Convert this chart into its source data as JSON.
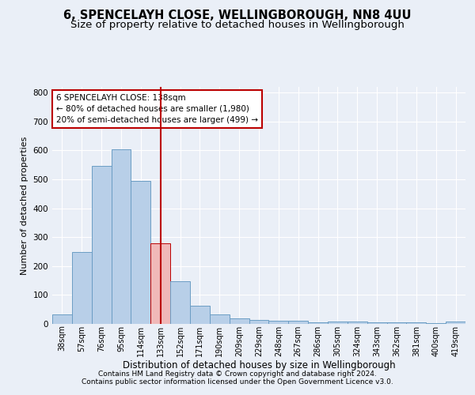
{
  "title": "6, SPENCELAYH CLOSE, WELLINGBOROUGH, NN8 4UU",
  "subtitle": "Size of property relative to detached houses in Wellingborough",
  "xlabel": "Distribution of detached houses by size in Wellingborough",
  "ylabel": "Number of detached properties",
  "footnote1": "Contains HM Land Registry data © Crown copyright and database right 2024.",
  "footnote2": "Contains public sector information licensed under the Open Government Licence v3.0.",
  "categories": [
    "38sqm",
    "57sqm",
    "76sqm",
    "95sqm",
    "114sqm",
    "133sqm",
    "152sqm",
    "171sqm",
    "190sqm",
    "209sqm",
    "229sqm",
    "248sqm",
    "267sqm",
    "286sqm",
    "305sqm",
    "324sqm",
    "343sqm",
    "362sqm",
    "381sqm",
    "400sqm",
    "419sqm"
  ],
  "values": [
    32,
    248,
    548,
    605,
    495,
    278,
    148,
    62,
    32,
    20,
    15,
    11,
    10,
    5,
    8,
    8,
    5,
    5,
    5,
    2,
    7
  ],
  "bar_color": "#b8cfe8",
  "bar_edge_color": "#6b9dc4",
  "highlight_index": 5,
  "highlight_bar_color": "#f0b8b8",
  "highlight_bar_edge_color": "#bb0000",
  "vline_color": "#bb0000",
  "annotation_title": "6 SPENCELAYH CLOSE: 138sqm",
  "annotation_line1": "← 80% of detached houses are smaller (1,980)",
  "annotation_line2": "20% of semi-detached houses are larger (499) →",
  "annotation_box_edge": "#bb0000",
  "ylim": [
    0,
    820
  ],
  "yticks": [
    0,
    100,
    200,
    300,
    400,
    500,
    600,
    700,
    800
  ],
  "bg_color": "#eaeff7",
  "plot_bg_color": "#eaeff7",
  "grid_color": "#ffffff",
  "title_fontsize": 10.5,
  "subtitle_fontsize": 9.5,
  "ylabel_fontsize": 8,
  "xlabel_fontsize": 8.5,
  "tick_fontsize": 7,
  "ann_fontsize": 7.5
}
